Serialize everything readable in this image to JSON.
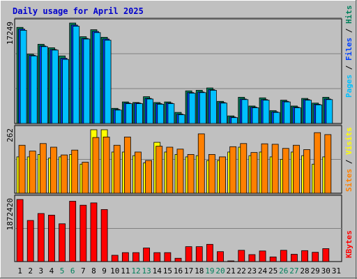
{
  "chart_data": {
    "type": "bar",
    "title": "Daily usage for April 2025",
    "categories": [
      "1",
      "2",
      "3",
      "4",
      "5",
      "6",
      "7",
      "8",
      "9",
      "10",
      "11",
      "12",
      "13",
      "14",
      "15",
      "16",
      "17",
      "18",
      "19",
      "20",
      "21",
      "22",
      "23",
      "24",
      "25",
      "26",
      "27",
      "28",
      "29",
      "30",
      "31"
    ],
    "weekend_days": [
      "5",
      "6",
      "12",
      "13",
      "19",
      "20",
      "26",
      "27"
    ],
    "colors": {
      "background": "#c0c0c0",
      "panel": "#c0c0c0",
      "grid": "#808080",
      "hits": "#00805c",
      "files": "#0040ff",
      "pages": "#00c0ff",
      "visits": "#ffff00",
      "sites": "#ff8000",
      "kbytes": "#ff0000",
      "title": "#0000cc",
      "weekday_label": "#000000",
      "weekend_label": "#00805c"
    },
    "panels": [
      {
        "ymax_label": "17249",
        "ymax": 17249,
        "series": [
          {
            "name": "Hits",
            "color": "#00805c",
            "values": [
              16500,
              11900,
              13600,
              13000,
              11600,
              17249,
              14900,
              16100,
              14800,
              2600,
              3700,
              3600,
              4600,
              3600,
              3700,
              1900,
              5600,
              5700,
              6100,
              3800,
              1300,
              4500,
              3000,
              4400,
              2200,
              4000,
              3000,
              4300,
              3500,
              4500,
              null
            ]
          },
          {
            "name": "Files",
            "color": "#0040ff",
            "values": [
              16200,
              11700,
              13300,
              12700,
              11200,
              16900,
              14600,
              15800,
              14500,
              2400,
              3500,
              3500,
              4300,
              3400,
              3500,
              1600,
              5300,
              5400,
              5800,
              3600,
              1100,
              4200,
              2800,
              4100,
              2000,
              3800,
              2800,
              4100,
              3300,
              4200,
              null
            ]
          },
          {
            "name": "Pages",
            "color": "#00c0ff",
            "values": [
              16000,
              11600,
              13200,
              12600,
              11000,
              16700,
              14500,
              15600,
              14300,
              2300,
              3400,
              3400,
              4200,
              3300,
              3400,
              1500,
              5200,
              5300,
              5700,
              3500,
              1000,
              4100,
              2700,
              4000,
              1900,
              3700,
              2700,
              4000,
              3200,
              4100,
              null
            ]
          }
        ]
      },
      {
        "ymax_label": "262",
        "ymax": 262,
        "series": [
          {
            "name": "Visits",
            "color": "#ffff00",
            "values": [
              150,
              150,
              160,
              145,
              150,
              160,
              120,
              262,
              262,
              170,
              170,
              155,
              125,
              210,
              170,
              160,
              150,
              155,
              135,
              135,
              170,
              190,
              155,
              170,
              150,
              140,
              170,
              155,
              120,
              150,
              null
            ]
          },
          {
            "name": "Sites",
            "color": "#ff8000",
            "values": [
              198,
              174,
              205,
              190,
              158,
              178,
              128,
              230,
              232,
              198,
              232,
              170,
              135,
              194,
              190,
              182,
              160,
              245,
              160,
              150,
              192,
              205,
              168,
              204,
              202,
              185,
              198,
              180,
              250,
              242,
              null
            ]
          }
        ]
      },
      {
        "ymax_label": "1872420",
        "ymax": 1872420,
        "series": [
          {
            "name": "KBytes",
            "color": "#ff0000",
            "values": [
              1872420,
              1240000,
              1450000,
              1400000,
              1140000,
              1820000,
              1700000,
              1770000,
              1570000,
              190000,
              270000,
              270000,
              410000,
              270000,
              270000,
              100000,
              450000,
              450000,
              520000,
              300000,
              15000,
              340000,
              210000,
              320000,
              140000,
              340000,
              220000,
              330000,
              280000,
              390000,
              null
            ]
          }
        ]
      }
    ],
    "right_labels": [
      {
        "parts": [
          [
            "Pages",
            "#00c0ff"
          ],
          [
            " / ",
            "#000000"
          ],
          [
            "Files",
            "#0040ff"
          ],
          [
            " / ",
            "#000000"
          ],
          [
            "Hits",
            "#00805c"
          ]
        ]
      },
      {
        "parts": [
          [
            "Sites",
            "#ff8000"
          ],
          [
            " / ",
            "#000000"
          ],
          [
            "Visits",
            "#ffff00"
          ]
        ]
      },
      {
        "parts": [
          [
            "KBytes",
            "#ff0000"
          ]
        ]
      }
    ]
  }
}
